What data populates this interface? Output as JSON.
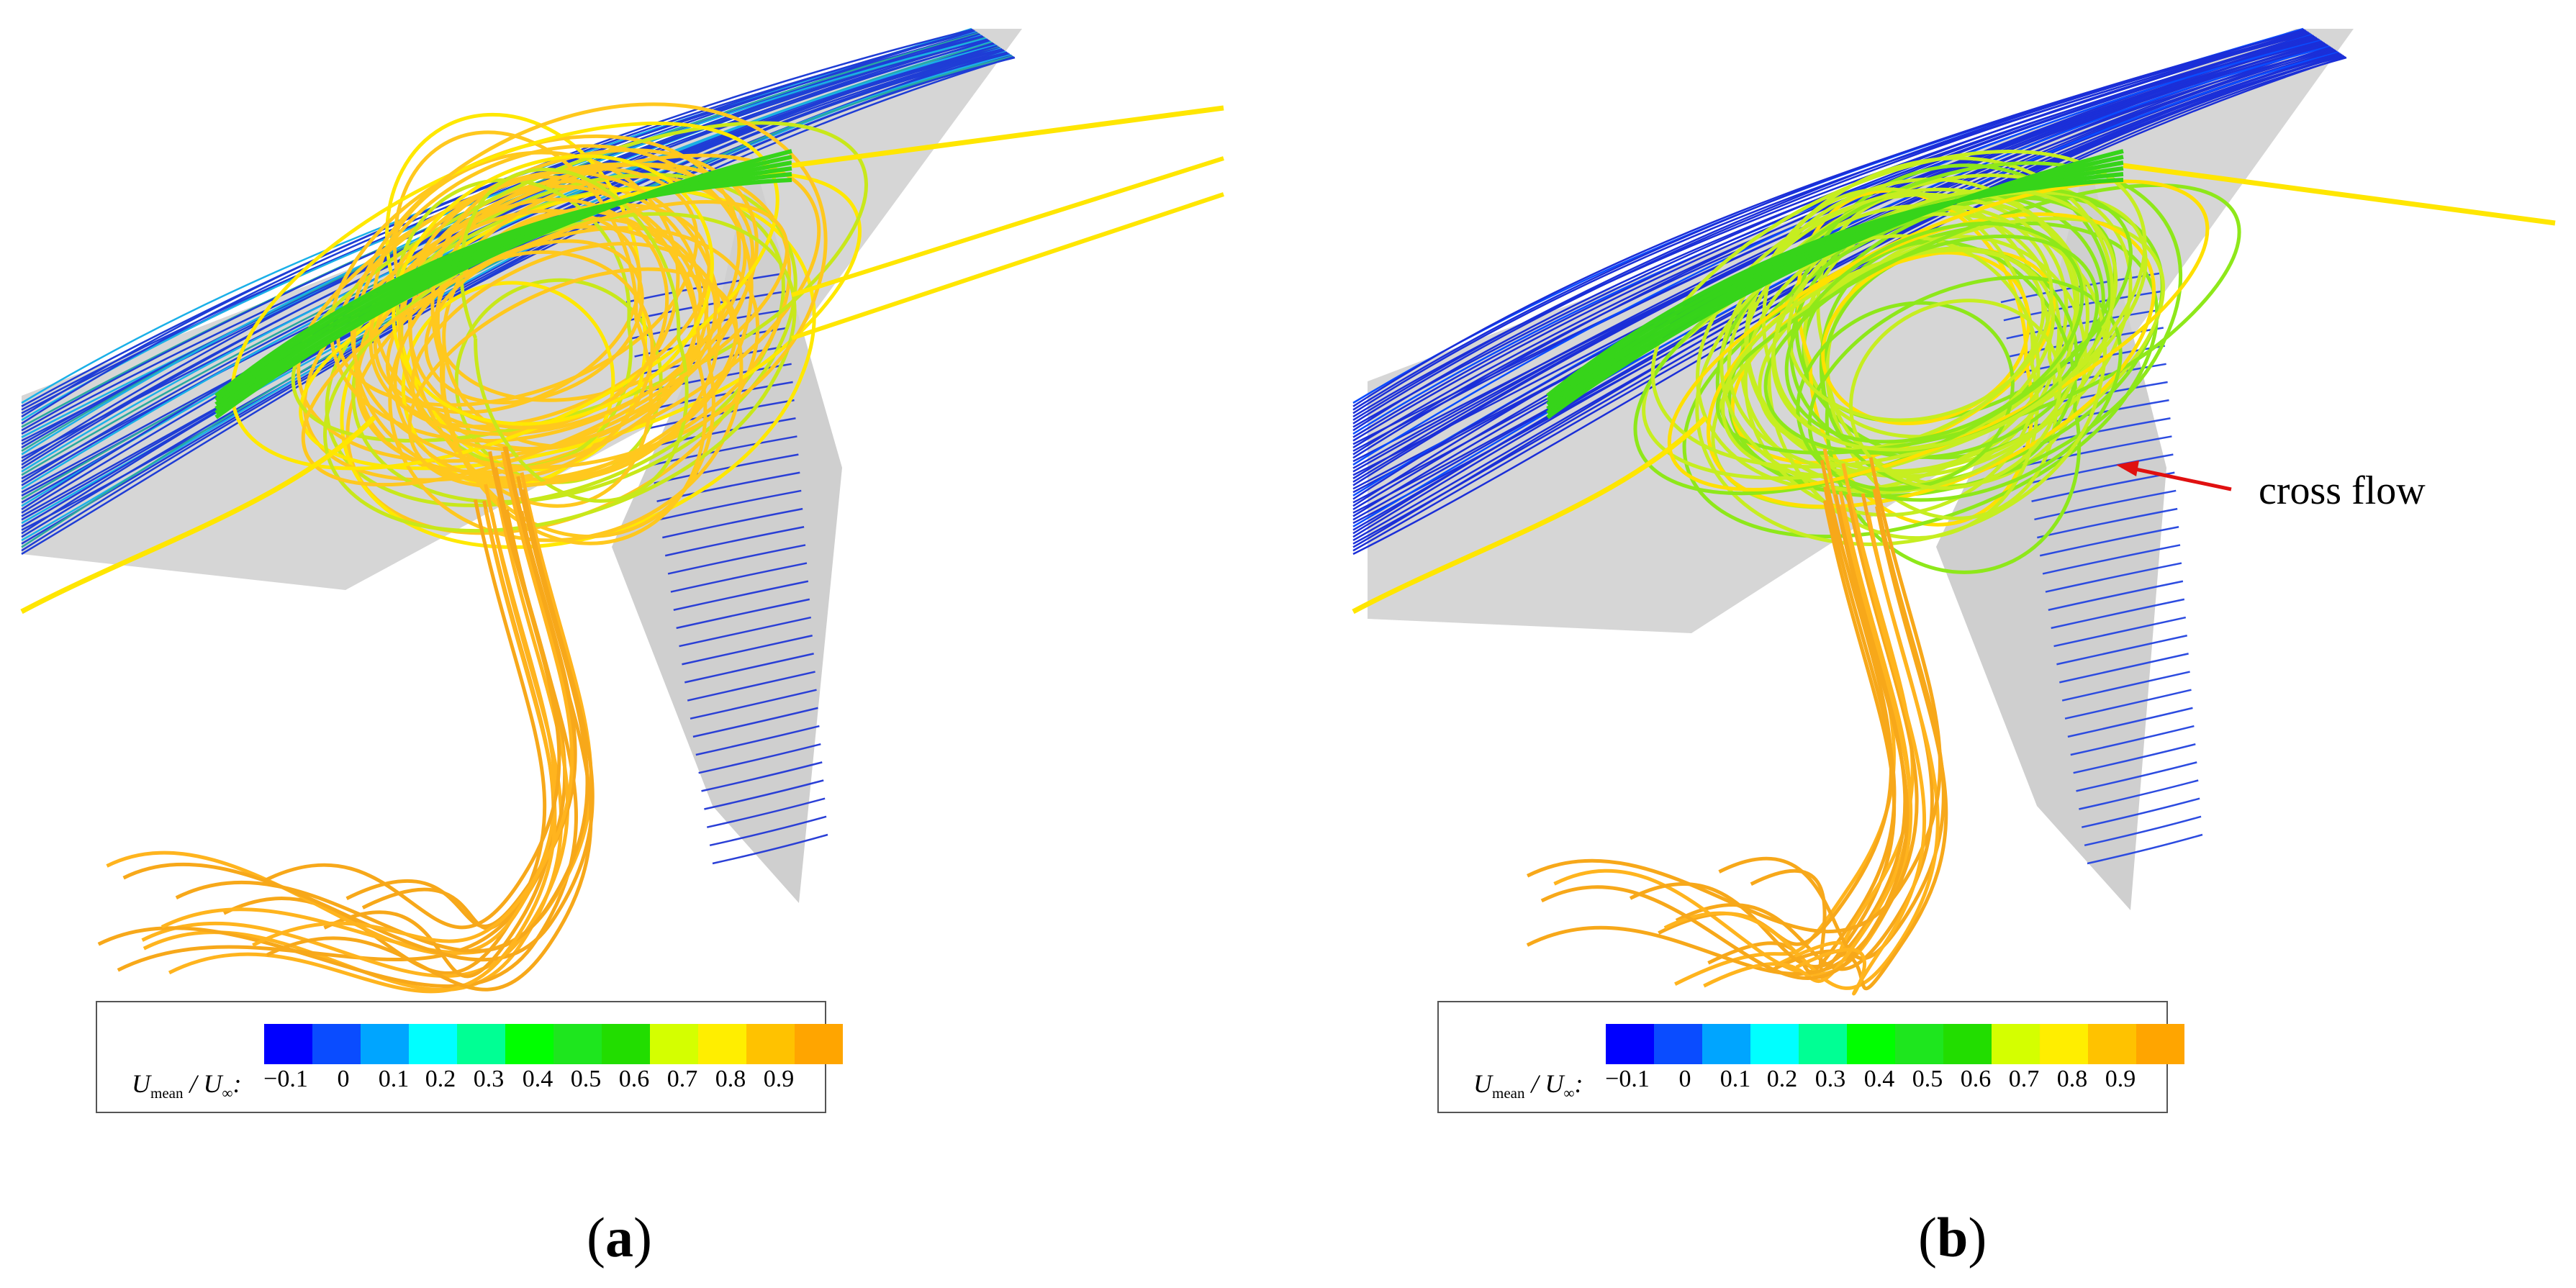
{
  "figure": {
    "panels": [
      {
        "id": "a",
        "label": "a",
        "legend": {
          "variable_main": "U",
          "variable_sub": "mean",
          "variable_sep": " / ",
          "variable_den": "U",
          "variable_den_sub": "∞",
          "variable_colon": ":",
          "ticks": [
            "−0.1",
            "0",
            "0.1",
            "0.2",
            "0.3",
            "0.4",
            "0.5",
            "0.6",
            "0.7",
            "0.8",
            "0.9"
          ]
        }
      },
      {
        "id": "b",
        "label": "b",
        "annotation": "cross flow",
        "legend": {
          "variable_main": "U",
          "variable_sub": "mean",
          "variable_sep": " / ",
          "variable_den": "U",
          "variable_den_sub": "∞",
          "variable_colon": ":",
          "ticks": [
            "−0.1",
            "0",
            "0.1",
            "0.2",
            "0.3",
            "0.4",
            "0.5",
            "0.6",
            "0.7",
            "0.8",
            "0.9"
          ]
        }
      }
    ],
    "colormap": [
      "#0000ff",
      "#0a4cff",
      "#00a5ff",
      "#00ffff",
      "#00ff94",
      "#00ff00",
      "#1ee61e",
      "#22dd00",
      "#d4ff00",
      "#ffee00",
      "#ffc200",
      "#ffa500"
    ],
    "colors": {
      "surface": "#d9d9d9",
      "surface_shade": "#a9a9a9",
      "annotation_arrow": "#e01010"
    }
  }
}
